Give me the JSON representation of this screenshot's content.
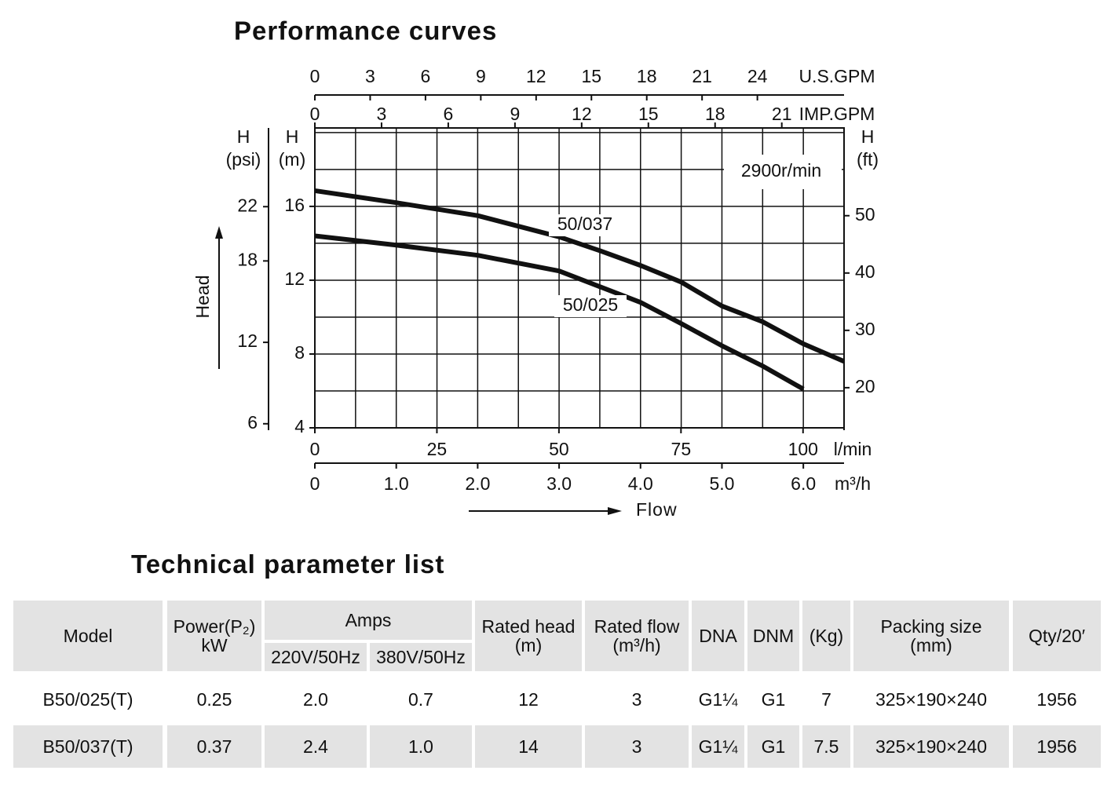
{
  "chart_data": {
    "type": "line",
    "title": "Performance curves",
    "x_label": "Flow",
    "y_label": "Head",
    "annotation": "2900r/min",
    "xlim": [
      0,
      6.5
    ],
    "xticks": [
      0,
      {
        "value": 1,
        "label": "1.0"
      },
      {
        "value": 2,
        "label": "2.0"
      },
      {
        "value": 3,
        "label": "3.0"
      },
      {
        "value": 4,
        "label": "4.0"
      },
      {
        "value": 5,
        "label": "5.0"
      },
      {
        "value": 6,
        "label": "6.0"
      }
    ],
    "x_unit": "m³/h",
    "ylim": [
      4,
      20.25
    ],
    "yticks": [
      4,
      8,
      12,
      16
    ],
    "y_unit": [
      "H",
      "(m)"
    ],
    "y2lim": [
      13,
      65.3
    ],
    "y2ticks": [
      20,
      30,
      40,
      50
    ],
    "y2_unit": [
      "H",
      "(ft)"
    ],
    "psi_axis": {
      "lim": [
        5.7,
        27.8
      ],
      "ticks": [
        6,
        12,
        18,
        22
      ],
      "unit": [
        "H",
        "(psi)"
      ]
    },
    "lmin_axis": {
      "lim": [
        0,
        108.4
      ],
      "ticks": [
        0,
        25,
        50,
        75,
        100
      ],
      "unit": "l/min"
    },
    "usgpm_axis": {
      "lim": [
        0,
        28.7
      ],
      "ticks": [
        0,
        3,
        6,
        9,
        12,
        15,
        18,
        21,
        24
      ],
      "unit": "U.S.GPM"
    },
    "impgpm_axis": {
      "lim": [
        0,
        23.8
      ],
      "ticks": [
        0,
        3,
        6,
        9,
        12,
        15,
        18,
        21
      ],
      "unit": "IMP.GPM"
    },
    "grid": true,
    "xgrid": [
      0,
      0.5,
      1,
      1.5,
      2,
      2.5,
      3,
      3.5,
      4,
      4.5,
      5,
      5.5,
      6,
      6.5
    ],
    "ygrid": [
      4,
      6,
      8,
      10,
      12,
      14,
      16,
      18,
      20
    ],
    "x": [
      0,
      1,
      2,
      3,
      3.5,
      4,
      4.5,
      5,
      5.5,
      6,
      6.5
    ],
    "series": [
      {
        "name": "50/037",
        "color": "#111111",
        "values": [
          16.85,
          16.2,
          15.5,
          14.35,
          13.6,
          12.8,
          11.9,
          10.6,
          9.75,
          8.55,
          7.6
        ]
      },
      {
        "name": "50/025",
        "color": "#111111",
        "values": [
          14.4,
          13.9,
          13.35,
          12.5,
          11.65,
          10.8,
          9.65,
          8.45,
          7.35,
          6.1,
          null
        ]
      }
    ]
  },
  "table": {
    "title": "Technical parameter list",
    "header": {
      "model": "Model",
      "power": [
        "Power(P₂)",
        "kW"
      ],
      "amps": "Amps",
      "amps_cols": [
        "220V/50Hz",
        "380V/50Hz"
      ],
      "rated_head": [
        "Rated head",
        "(m)"
      ],
      "rated_flow": [
        "Rated flow",
        "(m³/h)"
      ],
      "dna": "DNA",
      "dnm": "DNM",
      "weight": "(Kg)",
      "packing": [
        "Packing size",
        "(mm)"
      ],
      "qty": "Qty/20′"
    },
    "rows": [
      [
        "B50/025(T)",
        "0.25",
        "2.0",
        "0.7",
        "12",
        "3",
        "G1¼",
        "G1",
        "7",
        "325×190×240",
        "1956"
      ],
      [
        "B50/037(T)",
        "0.37",
        "2.4",
        "1.0",
        "14",
        "3",
        "G1¼",
        "G1",
        "7.5",
        "325×190×240",
        "1956"
      ]
    ]
  }
}
